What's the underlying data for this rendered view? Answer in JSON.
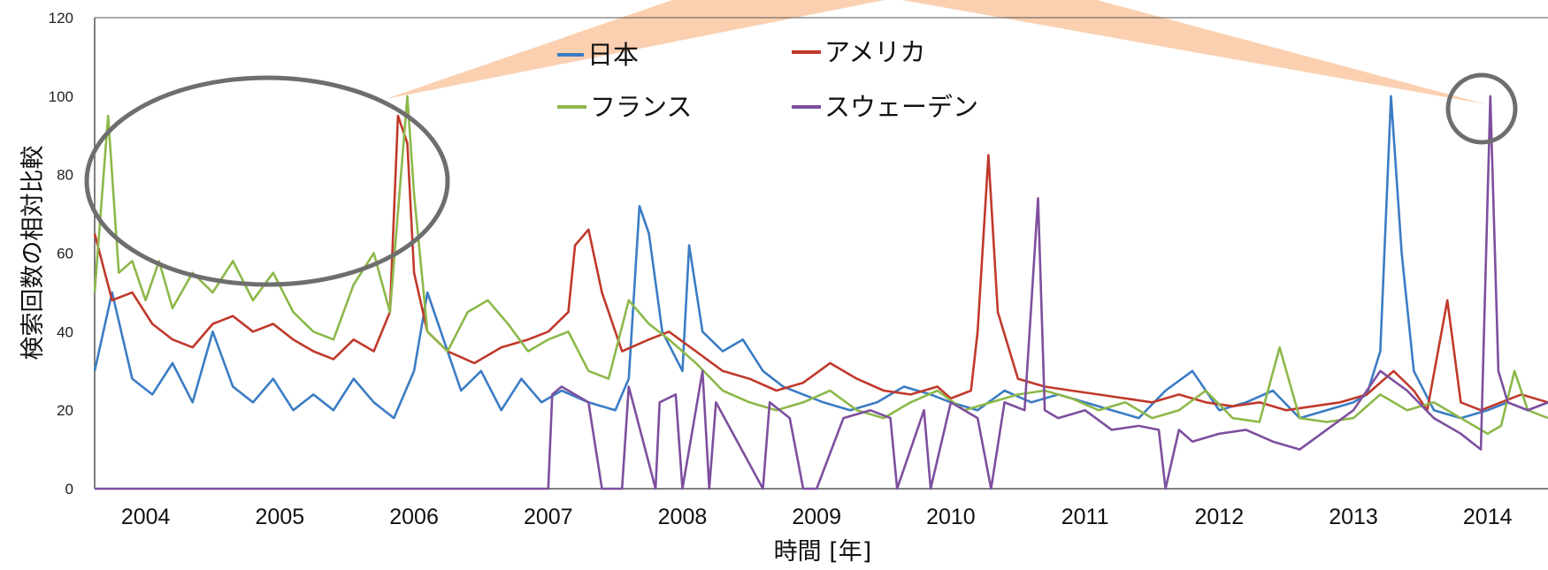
{
  "chart_data": {
    "type": "line",
    "title": "",
    "xlabel": "時間 [年]",
    "ylabel": "検索回数の相対比較",
    "xlim": [
      2003.62,
      2014.45
    ],
    "ylim": [
      0,
      120
    ],
    "yticks": [
      0,
      20,
      40,
      60,
      80,
      100,
      120
    ],
    "x_ticks": [
      {
        "label": "2004",
        "x": 2004.0
      },
      {
        "label": "2005",
        "x": 2005.0
      },
      {
        "label": "2006",
        "x": 2006.0
      },
      {
        "label": "2007",
        "x": 2007.0
      },
      {
        "label": "2008",
        "x": 2008.0
      },
      {
        "label": "2009",
        "x": 2009.0
      },
      {
        "label": "2010",
        "x": 2010.0
      },
      {
        "label": "2011",
        "x": 2011.0
      },
      {
        "label": "2012",
        "x": 2012.0
      },
      {
        "label": "2013",
        "x": 2013.0
      },
      {
        "label": "2014",
        "x": 2014.0
      }
    ],
    "grid": false,
    "legend_position": "top-center",
    "series": [
      {
        "name": "日本",
        "color": "#3B7CC3",
        "x": [
          2003.62,
          2003.75,
          2003.9,
          2004.05,
          2004.2,
          2004.35,
          2004.5,
          2004.65,
          2004.8,
          2004.95,
          2005.1,
          2005.25,
          2005.4,
          2005.55,
          2005.7,
          2005.85,
          2006.0,
          2006.1,
          2006.2,
          2006.35,
          2006.5,
          2006.65,
          2006.8,
          2006.95,
          2007.1,
          2007.3,
          2007.5,
          2007.6,
          2007.68,
          2007.75,
          2007.85,
          2008.0,
          2008.05,
          2008.15,
          2008.3,
          2008.45,
          2008.6,
          2008.75,
          2008.9,
          2009.05,
          2009.25,
          2009.45,
          2009.65,
          2009.85,
          2010.0,
          2010.2,
          2010.4,
          2010.6,
          2010.8,
          2011.0,
          2011.2,
          2011.4,
          2011.6,
          2011.8,
          2012.0,
          2012.2,
          2012.4,
          2012.6,
          2012.8,
          2013.0,
          2013.1,
          2013.2,
          2013.28,
          2013.36,
          2013.45,
          2013.6,
          2013.8,
          2014.0,
          2014.15,
          2014.3,
          2014.45
        ],
        "values": [
          30,
          50,
          28,
          24,
          32,
          22,
          40,
          26,
          22,
          28,
          20,
          24,
          20,
          28,
          22,
          18,
          30,
          50,
          40,
          25,
          30,
          20,
          28,
          22,
          25,
          22,
          20,
          28,
          72,
          65,
          40,
          30,
          62,
          40,
          35,
          38,
          30,
          26,
          24,
          22,
          20,
          22,
          26,
          24,
          22,
          20,
          25,
          22,
          24,
          22,
          20,
          18,
          25,
          30,
          20,
          22,
          25,
          18,
          20,
          22,
          24,
          35,
          100,
          60,
          30,
          20,
          18,
          20,
          22,
          20,
          22
        ]
      },
      {
        "name": "アメリカ",
        "color": "#C0392B",
        "x": [
          2003.62,
          2003.75,
          2003.9,
          2004.05,
          2004.2,
          2004.35,
          2004.5,
          2004.65,
          2004.8,
          2004.95,
          2005.1,
          2005.25,
          2005.4,
          2005.55,
          2005.7,
          2005.82,
          2005.88,
          2005.95,
          2006.0,
          2006.1,
          2006.25,
          2006.45,
          2006.65,
          2006.85,
          2007.0,
          2007.15,
          2007.2,
          2007.3,
          2007.4,
          2007.55,
          2007.75,
          2007.9,
          2008.1,
          2008.3,
          2008.5,
          2008.7,
          2008.9,
          2009.1,
          2009.3,
          2009.5,
          2009.7,
          2009.9,
          2010.0,
          2010.15,
          2010.2,
          2010.28,
          2010.35,
          2010.5,
          2010.7,
          2010.9,
          2011.1,
          2011.3,
          2011.5,
          2011.7,
          2011.9,
          2012.1,
          2012.3,
          2012.5,
          2012.7,
          2012.9,
          2013.1,
          2013.3,
          2013.45,
          2013.55,
          2013.7,
          2013.8,
          2013.95,
          2014.1,
          2014.25,
          2014.45
        ],
        "values": [
          65,
          48,
          50,
          42,
          38,
          36,
          42,
          44,
          40,
          42,
          38,
          35,
          33,
          38,
          35,
          45,
          95,
          88,
          55,
          40,
          35,
          32,
          36,
          38,
          40,
          45,
          62,
          66,
          50,
          35,
          38,
          40,
          35,
          30,
          28,
          25,
          27,
          32,
          28,
          25,
          24,
          26,
          23,
          25,
          40,
          85,
          45,
          28,
          26,
          25,
          24,
          23,
          22,
          24,
          22,
          21,
          22,
          20,
          21,
          22,
          24,
          30,
          25,
          20,
          48,
          22,
          20,
          22,
          24,
          22
        ]
      },
      {
        "name": "フランス",
        "color": "#8DB84A",
        "x": [
          2003.62,
          2003.72,
          2003.8,
          2003.9,
          2004.0,
          2004.1,
          2004.2,
          2004.35,
          2004.5,
          2004.65,
          2004.8,
          2004.95,
          2005.1,
          2005.25,
          2005.4,
          2005.55,
          2005.7,
          2005.82,
          2005.95,
          2006.0,
          2006.1,
          2006.25,
          2006.4,
          2006.55,
          2006.7,
          2006.85,
          2007.0,
          2007.15,
          2007.3,
          2007.45,
          2007.6,
          2007.75,
          2007.9,
          2008.1,
          2008.3,
          2008.5,
          2008.7,
          2008.9,
          2009.1,
          2009.3,
          2009.5,
          2009.7,
          2009.9,
          2010.1,
          2010.3,
          2010.5,
          2010.7,
          2010.9,
          2011.1,
          2011.3,
          2011.5,
          2011.7,
          2011.9,
          2012.1,
          2012.3,
          2012.45,
          2012.6,
          2012.8,
          2013.0,
          2013.2,
          2013.4,
          2013.6,
          2013.8,
          2014.0,
          2014.1,
          2014.2,
          2014.3,
          2014.45
        ],
        "values": [
          50,
          95,
          55,
          58,
          48,
          58,
          46,
          55,
          50,
          58,
          48,
          55,
          45,
          40,
          38,
          52,
          60,
          45,
          100,
          75,
          40,
          35,
          45,
          48,
          42,
          35,
          38,
          40,
          30,
          28,
          48,
          42,
          38,
          32,
          25,
          22,
          20,
          22,
          25,
          20,
          18,
          22,
          25,
          20,
          22,
          24,
          25,
          23,
          20,
          22,
          18,
          20,
          25,
          18,
          17,
          36,
          18,
          17,
          18,
          24,
          20,
          22,
          18,
          14,
          16,
          30,
          20,
          18
        ]
      },
      {
        "name": "スウェーデン",
        "color": "#7D4F9E",
        "x": [
          2003.62,
          2006.5,
          2007.0,
          2007.03,
          2007.1,
          2007.2,
          2007.3,
          2007.4,
          2007.55,
          2007.6,
          2007.8,
          2007.83,
          2007.95,
          2008.0,
          2008.15,
          2008.2,
          2008.25,
          2008.6,
          2008.65,
          2008.8,
          2008.9,
          2009.0,
          2009.2,
          2009.4,
          2009.55,
          2009.6,
          2009.8,
          2009.85,
          2010.0,
          2010.2,
          2010.3,
          2010.4,
          2010.55,
          2010.65,
          2010.7,
          2010.8,
          2011.0,
          2011.2,
          2011.4,
          2011.55,
          2011.6,
          2011.7,
          2011.8,
          2012.0,
          2012.2,
          2012.4,
          2012.6,
          2012.8,
          2013.0,
          2013.2,
          2013.4,
          2013.6,
          2013.8,
          2013.95,
          2014.02,
          2014.08,
          2014.15,
          2014.3,
          2014.45
        ],
        "values": [
          0,
          0,
          0,
          24,
          26,
          24,
          22,
          0,
          0,
          26,
          0,
          22,
          24,
          0,
          30,
          0,
          22,
          0,
          22,
          18,
          0,
          0,
          18,
          20,
          18,
          0,
          20,
          0,
          22,
          18,
          0,
          22,
          20,
          74,
          20,
          18,
          20,
          15,
          16,
          15,
          0,
          15,
          12,
          14,
          15,
          12,
          10,
          15,
          20,
          30,
          25,
          18,
          14,
          10,
          100,
          30,
          22,
          20,
          22
        ]
      }
    ]
  }
}
